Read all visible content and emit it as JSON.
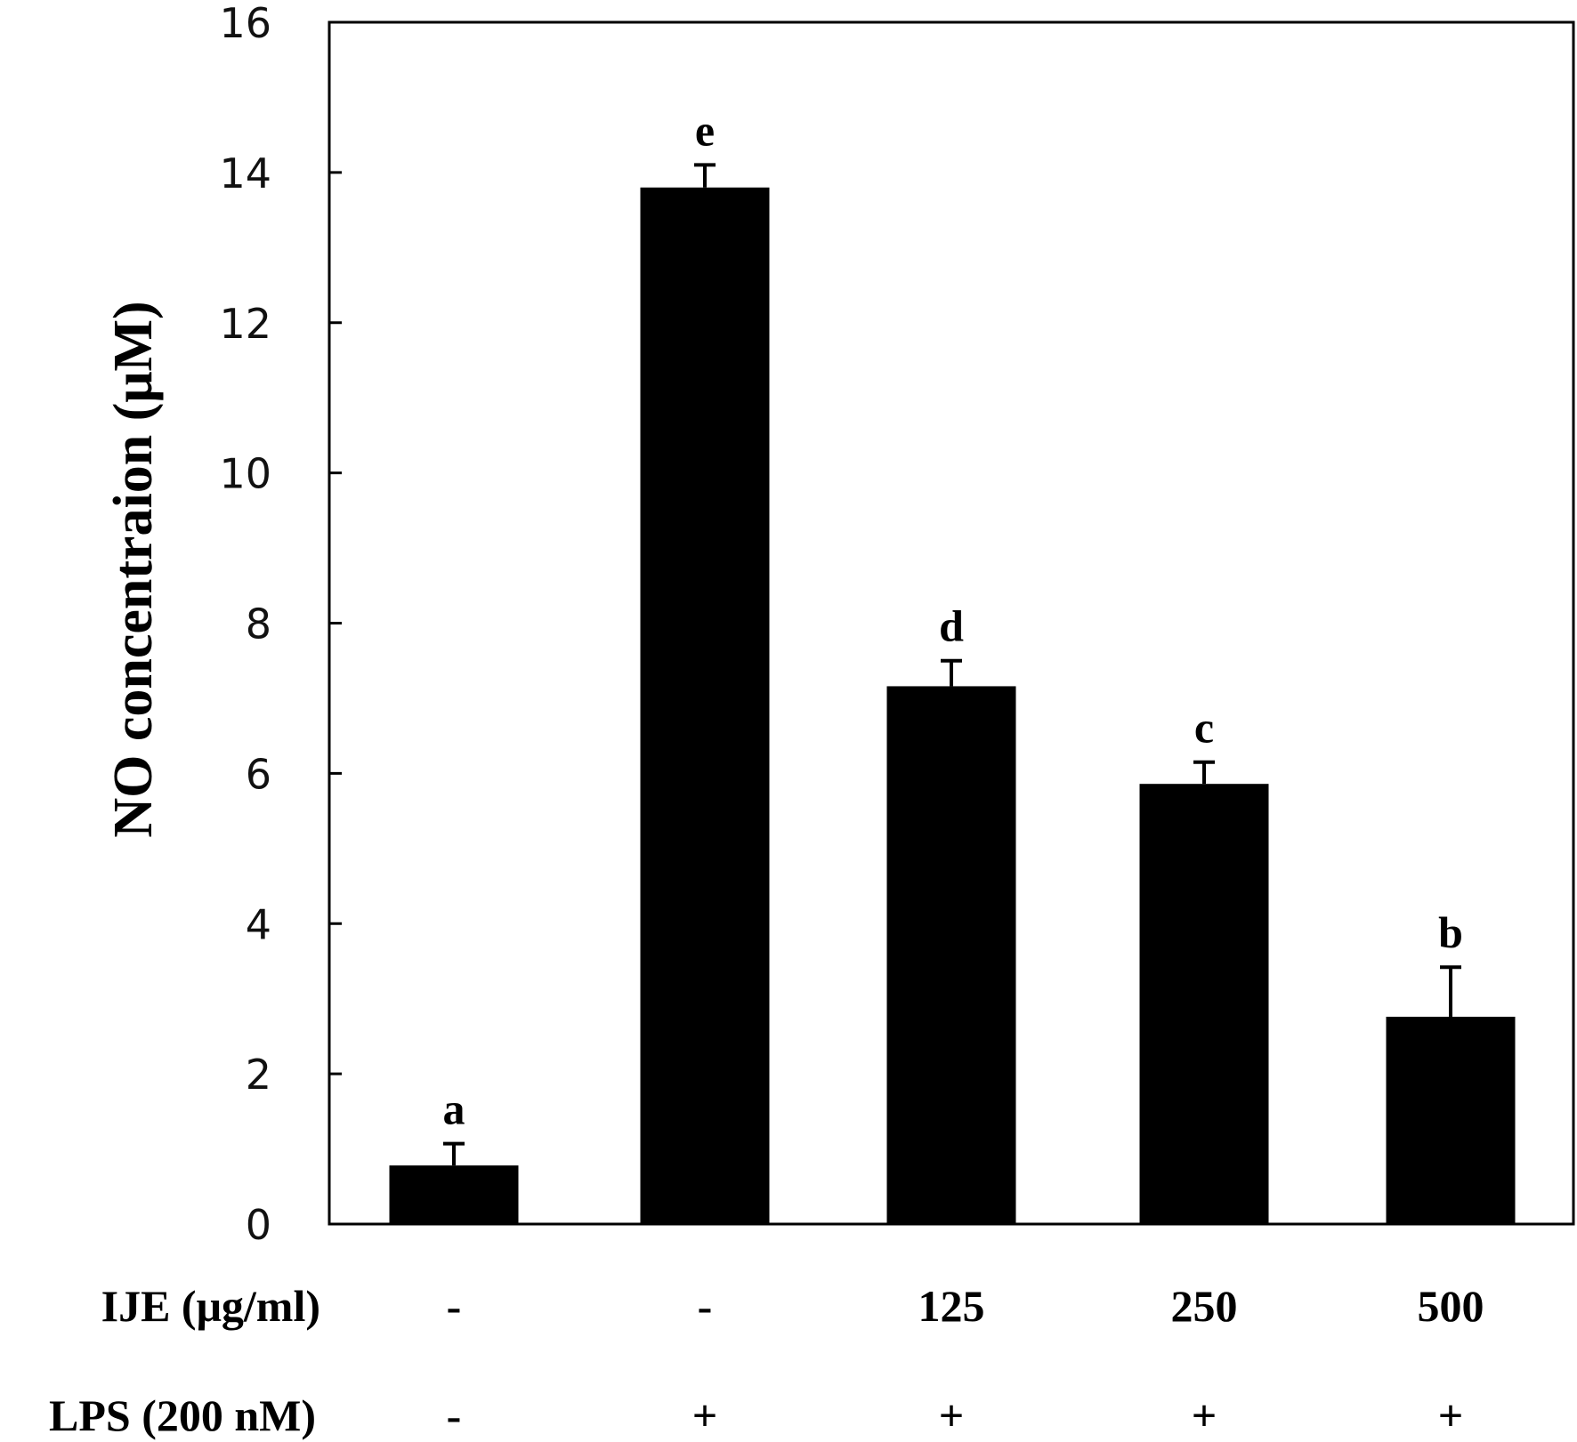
{
  "chart_data": {
    "type": "bar",
    "title": "",
    "xlabel": "",
    "ylabel": "NO concentraion  (μM)",
    "ylim": [
      0,
      16
    ],
    "yticks": [
      "0",
      "2",
      "4",
      "6",
      "8",
      "10",
      "12",
      "14",
      "16"
    ],
    "grid": false,
    "categories": [
      "1",
      "2",
      "3",
      "4",
      "5"
    ],
    "values": [
      0.78,
      13.8,
      7.16,
      5.86,
      2.76
    ],
    "errors": [
      0.29,
      0.3,
      0.34,
      0.29,
      0.66
    ],
    "significance_letters": [
      "a",
      "e",
      "d",
      "c",
      "b"
    ],
    "bar_color": "#000000",
    "treatment_rows": [
      {
        "label": "IJE (μg/ml)",
        "values": [
          "-",
          "-",
          "125",
          "250",
          "500"
        ]
      },
      {
        "label": "LPS (200 nM)",
        "values": [
          "-",
          "+",
          "+",
          "+",
          "+"
        ]
      }
    ]
  }
}
